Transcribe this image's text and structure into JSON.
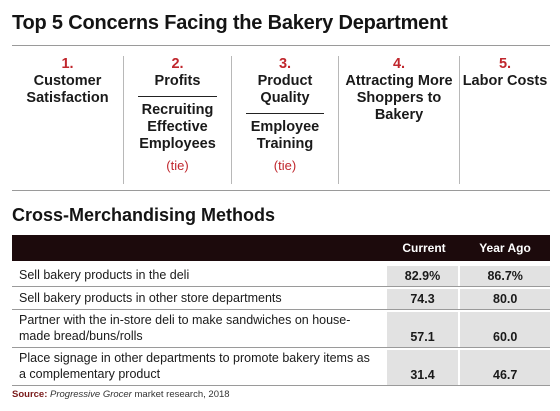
{
  "title": "Top 5 Concerns Facing the Bakery Department",
  "concerns": [
    {
      "num": "1.",
      "label": "Customer Satisfaction"
    },
    {
      "num": "2.",
      "label": "Profits",
      "tie_with": "Recruiting Effective Employees",
      "tie": "(tie)"
    },
    {
      "num": "3.",
      "label": "Product Quality",
      "tie_with": "Employee Training",
      "tie": "(tie)"
    },
    {
      "num": "4.",
      "label": "Attracting More Shoppers to Bakery"
    },
    {
      "num": "5.",
      "label": "Labor Costs"
    }
  ],
  "cross_title": "Cross-Merchandising Methods",
  "table": {
    "headers": [
      "",
      "Current",
      "Year Ago"
    ],
    "rows": [
      {
        "label": "Sell bakery products in the deli",
        "current": "82.9%",
        "year_ago": "86.7%"
      },
      {
        "label": "Sell bakery products in other store departments",
        "current": "74.3",
        "year_ago": "80.0"
      },
      {
        "label": "Partner with the in-store deli to make sandwiches on house-made bread/buns/rolls",
        "current": "57.1",
        "year_ago": "60.0"
      },
      {
        "label": "Place signage in other departments to promote bakery items as a complementary product",
        "current": "31.4",
        "year_ago": "46.7"
      }
    ]
  },
  "source": {
    "label": "Source:",
    "publication": "Progressive Grocer",
    "rest": " market research, 2018"
  },
  "colors": {
    "accent": "#c0272d",
    "header_bg": "#1c0a0c",
    "cell_bg": "#e2e2e2"
  }
}
